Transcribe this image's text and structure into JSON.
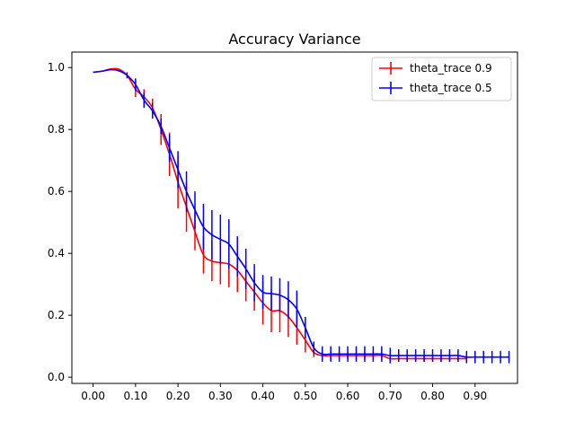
{
  "chart_data": {
    "type": "line",
    "title": "Accuracy Variance",
    "xlabel": "",
    "ylabel": "",
    "xlim": [
      -0.05,
      1.0
    ],
    "ylim": [
      -0.02,
      1.05
    ],
    "xticks": [
      0.0,
      0.1,
      0.2,
      0.3,
      0.4,
      0.5,
      0.6,
      0.7,
      0.8,
      0.9
    ],
    "xtick_labels": [
      "0.00",
      "0.10",
      "0.20",
      "0.30",
      "0.40",
      "0.50",
      "0.60",
      "0.70",
      "0.80",
      "0.90"
    ],
    "yticks": [
      0.0,
      0.2,
      0.4,
      0.6,
      0.8,
      1.0
    ],
    "ytick_labels": [
      "0.0",
      "0.2",
      "0.4",
      "0.6",
      "0.8",
      "1.0"
    ],
    "grid": false,
    "legend": "top-right",
    "series": [
      {
        "name": "theta_trace 0.9",
        "color": "#ff0000",
        "x": [
          0.0,
          0.02,
          0.04,
          0.06,
          0.08,
          0.1,
          0.12,
          0.14,
          0.16,
          0.18,
          0.2,
          0.22,
          0.24,
          0.26,
          0.28,
          0.3,
          0.32,
          0.34,
          0.36,
          0.38,
          0.4,
          0.42,
          0.44,
          0.46,
          0.48,
          0.5,
          0.52,
          0.54,
          0.56,
          0.58,
          0.6,
          0.62,
          0.64,
          0.66,
          0.68,
          0.7,
          0.72,
          0.74,
          0.76,
          0.78,
          0.8,
          0.82,
          0.84,
          0.86,
          0.88
        ],
        "y": [
          0.985,
          0.988,
          0.995,
          0.995,
          0.975,
          0.93,
          0.905,
          0.87,
          0.8,
          0.72,
          0.63,
          0.55,
          0.47,
          0.395,
          0.375,
          0.37,
          0.365,
          0.345,
          0.31,
          0.275,
          0.24,
          0.215,
          0.215,
          0.195,
          0.16,
          0.12,
          0.08,
          0.07,
          0.07,
          0.07,
          0.07,
          0.07,
          0.07,
          0.07,
          0.07,
          0.06,
          0.06,
          0.06,
          0.06,
          0.06,
          0.06,
          0.06,
          0.06,
          0.06,
          0.06
        ],
        "err": [
          0,
          0,
          0,
          0,
          0,
          0.025,
          0.025,
          0.03,
          0.05,
          0.07,
          0.085,
          0.08,
          0.06,
          0.06,
          0.065,
          0.07,
          0.075,
          0.07,
          0.065,
          0.06,
          0.07,
          0.07,
          0.07,
          0.065,
          0.055,
          0.04,
          0.015,
          0.01,
          0.01,
          0.01,
          0.01,
          0.01,
          0.01,
          0.01,
          0.01,
          0.01,
          0.01,
          0.01,
          0.01,
          0.01,
          0.01,
          0.01,
          0.01,
          0.01,
          0.01
        ]
      },
      {
        "name": "theta_trace 0.5",
        "color": "#0000ff",
        "x": [
          0.0,
          0.02,
          0.04,
          0.06,
          0.08,
          0.1,
          0.12,
          0.14,
          0.16,
          0.18,
          0.2,
          0.22,
          0.24,
          0.26,
          0.28,
          0.3,
          0.32,
          0.34,
          0.36,
          0.38,
          0.4,
          0.42,
          0.44,
          0.46,
          0.48,
          0.5,
          0.52,
          0.54,
          0.56,
          0.58,
          0.6,
          0.62,
          0.64,
          0.66,
          0.68,
          0.7,
          0.72,
          0.74,
          0.76,
          0.78,
          0.8,
          0.82,
          0.84,
          0.86,
          0.88,
          0.9,
          0.92,
          0.94,
          0.96,
          0.98
        ],
        "y": [
          0.985,
          0.988,
          0.993,
          0.99,
          0.975,
          0.945,
          0.895,
          0.86,
          0.81,
          0.74,
          0.67,
          0.6,
          0.54,
          0.485,
          0.46,
          0.445,
          0.43,
          0.39,
          0.35,
          0.305,
          0.275,
          0.27,
          0.265,
          0.25,
          0.22,
          0.16,
          0.095,
          0.075,
          0.075,
          0.075,
          0.075,
          0.075,
          0.075,
          0.075,
          0.075,
          0.07,
          0.07,
          0.07,
          0.07,
          0.07,
          0.07,
          0.07,
          0.07,
          0.07,
          0.065,
          0.065,
          0.065,
          0.065,
          0.065,
          0.065
        ],
        "err": [
          0,
          0,
          0,
          0,
          0.01,
          0.02,
          0.025,
          0.025,
          0.025,
          0.045,
          0.06,
          0.065,
          0.06,
          0.075,
          0.08,
          0.08,
          0.08,
          0.065,
          0.065,
          0.06,
          0.055,
          0.055,
          0.055,
          0.06,
          0.06,
          0.035,
          0.02,
          0.025,
          0.025,
          0.025,
          0.025,
          0.025,
          0.025,
          0.025,
          0.025,
          0.025,
          0.02,
          0.02,
          0.02,
          0.02,
          0.02,
          0.02,
          0.02,
          0.02,
          0.02,
          0.02,
          0.02,
          0.02,
          0.02,
          0.02
        ]
      }
    ]
  }
}
